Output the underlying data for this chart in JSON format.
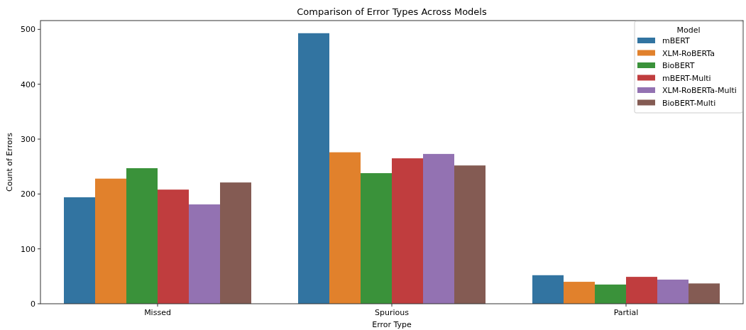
{
  "chart_data": {
    "type": "bar",
    "title": "Comparison of Error Types Across Models",
    "xlabel": "Error Type",
    "ylabel": "Count of Errors",
    "legend_title": "Model",
    "legend": "top right",
    "categories": [
      "Missed",
      "Spurious",
      "Partial"
    ],
    "ylim": [
      0,
      516
    ],
    "yticks": [
      0,
      100,
      200,
      300,
      400,
      500
    ],
    "series": [
      {
        "name": "mBERT",
        "color": "#3274a1",
        "values": [
          194,
          493,
          52
        ]
      },
      {
        "name": "XLM-RoBERTa",
        "color": "#e1812c",
        "values": [
          228,
          276,
          40
        ]
      },
      {
        "name": "BioBERT",
        "color": "#3a923a",
        "values": [
          247,
          238,
          35
        ]
      },
      {
        "name": "mBERT-Multi",
        "color": "#c03d3e",
        "values": [
          208,
          265,
          49
        ]
      },
      {
        "name": "XLM-RoBERTa-Multi",
        "color": "#9372b2",
        "values": [
          181,
          273,
          44
        ]
      },
      {
        "name": "BioBERT-Multi",
        "color": "#845b53",
        "values": [
          221,
          252,
          37
        ]
      }
    ]
  }
}
